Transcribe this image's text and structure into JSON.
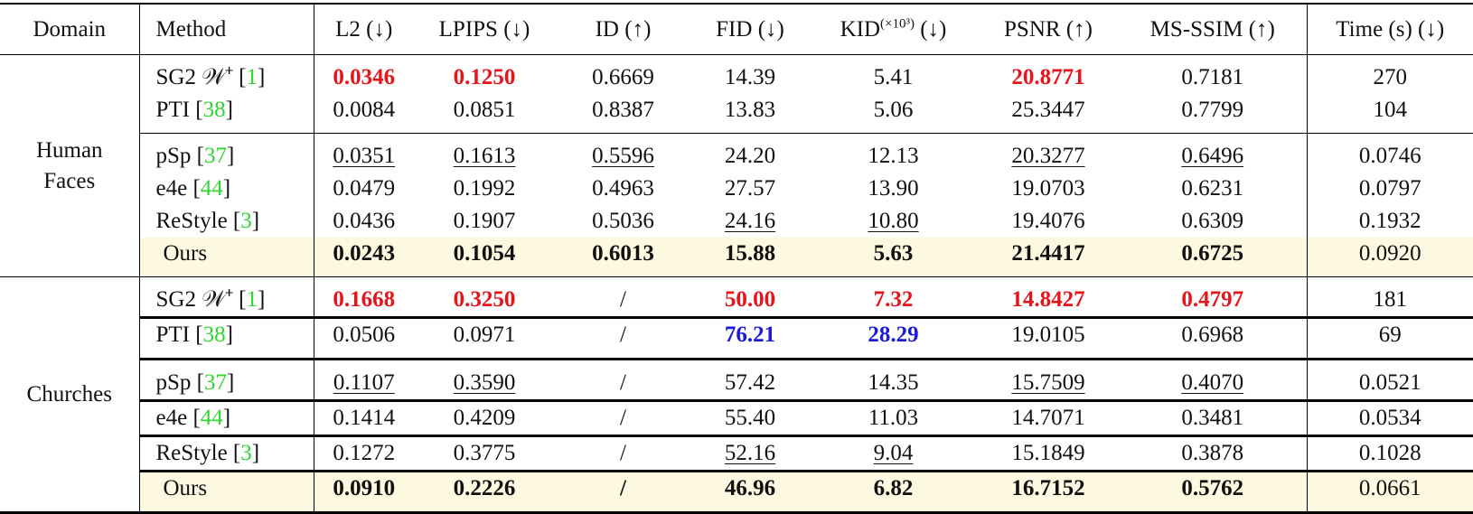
{
  "table": {
    "header": [
      "Domain",
      "Method",
      "L2 (↓)",
      "LPIPS (↓)",
      "ID (↑)",
      "FID (↓)",
      {
        "text": "KID",
        "sup": "(×10³)",
        "suffix": " (↓)"
      },
      "PSNR (↑)",
      "MS-SSIM (↑)",
      "Time (s) (↓)"
    ],
    "groups": [
      {
        "domain": "Human Faces",
        "subgroups": [
          [
            {
              "method": {
                "name": "SG2 𝒲⁺ ",
                "ref": "[1]"
              },
              "cells": [
                "0.0346",
                "0.1250",
                "0.6669",
                "14.39",
                "5.41",
                "20.8771",
                "0.7181",
                "270"
              ]
            },
            {
              "method": {
                "name": "PTI ",
                "ref": "[38]"
              },
              "cells": [
                "0.0084",
                "0.0851",
                "0.8387",
                "13.83",
                "5.06",
                "25.3447",
                "0.7799",
                "104"
              ]
            }
          ],
          [
            {
              "method": {
                "name": "pSp ",
                "ref": "[37]"
              },
              "cells": [
                "0.0351",
                "0.1613",
                "0.5596",
                "24.20",
                "12.13",
                "20.3277",
                "0.6496",
                "0.0746"
              ]
            },
            {
              "method": {
                "name": "e4e ",
                "ref": "[44]"
              },
              "cells": [
                "0.0479",
                "0.1992",
                "0.4963",
                "27.57",
                "13.90",
                "19.0703",
                "0.6231",
                "0.0797"
              ]
            },
            {
              "method": {
                "name": "ReStyle ",
                "ref": "[3]"
              },
              "cells": [
                "0.0436",
                "0.1907",
                "0.5036",
                "24.16",
                "10.80",
                "19.4076",
                "0.6309",
                "0.1932"
              ]
            },
            {
              "method": {
                "name": "Ours"
              },
              "cells": [
                "0.0243",
                "0.1054",
                "0.6013",
                "15.88",
                "5.63",
                "21.4417",
                "0.6725",
                "0.0920"
              ]
            }
          ]
        ]
      },
      {
        "domain": "Churches",
        "subgroups": [
          [
            {
              "method": {
                "name": "SG2 𝒲⁺ ",
                "ref": "[1]"
              },
              "cells": [
                "0.1668",
                "0.3250",
                "/",
                "50.00",
                "7.32",
                "14.8427",
                "0.4797",
                "181"
              ]
            },
            {
              "method": {
                "name": "PTI ",
                "ref": "[38]"
              },
              "cells": [
                "0.0506",
                "0.0971",
                "/",
                "76.21",
                "28.29",
                "19.0105",
                "0.6968",
                "69"
              ]
            }
          ],
          [
            {
              "method": {
                "name": "pSp ",
                "ref": "[37]"
              },
              "cells": [
                "0.1107",
                "0.3590",
                "/",
                "57.42",
                "14.35",
                "15.7509",
                "0.4070",
                "0.0521"
              ]
            },
            {
              "method": {
                "name": "e4e ",
                "ref": "[44]"
              },
              "cells": [
                "0.1414",
                "0.4209",
                "/",
                "55.40",
                "11.03",
                "14.7071",
                "0.3481",
                "0.0534"
              ]
            },
            {
              "method": {
                "name": "ReStyle ",
                "ref": "[3]"
              },
              "cells": [
                "0.1272",
                "0.3775",
                "/",
                "52.16",
                "9.04",
                "15.1849",
                "0.3878",
                "0.1028"
              ]
            },
            {
              "method": {
                "name": "Ours"
              },
              "cells": [
                "0.0910",
                "0.2226",
                "/",
                "46.96",
                "6.82",
                "16.7152",
                "0.5762",
                "0.0661"
              ]
            }
          ]
        ]
      }
    ]
  }
}
